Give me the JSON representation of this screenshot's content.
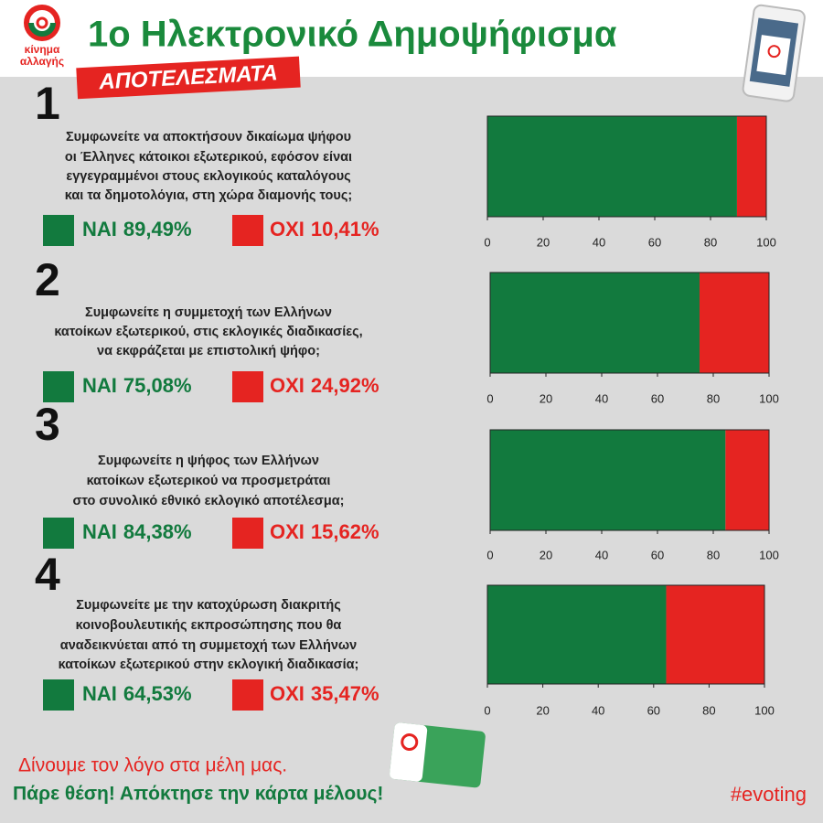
{
  "header": {
    "logo_text": [
      "κίνημα",
      "αλλαγής"
    ],
    "title": "1ο Ηλεκτρονικό Δημοψήφισμα",
    "badge": "ΑΠΟΤΕΛΕΣΜΑΤΑ"
  },
  "chart_data": [
    {
      "type": "bar",
      "orientation": "horizontal",
      "stacked": true,
      "number": "1",
      "question": [
        "Συμφωνείτε να αποκτήσουν δικαίωμα ψήφου",
        "οι Έλληνες κάτοικοι εξωτερικού, εφόσον είναι",
        "εγγεγραμμένοι στους εκλογικούς καταλόγους",
        "και τα δημοτολόγια, στη χώρα διαμονής τους;"
      ],
      "series": [
        {
          "name": "ΝΑΙ",
          "color": "#127a3e",
          "values": [
            89.49
          ],
          "value_labels": [
            "89,49%"
          ]
        },
        {
          "name": "ΟΧΙ",
          "color": "#e52421",
          "values": [
            10.41
          ],
          "value_labels": [
            "10,41%"
          ]
        }
      ],
      "xlim": [
        0,
        100
      ],
      "xticks": [
        0,
        20,
        40,
        60,
        80,
        100
      ]
    },
    {
      "type": "bar",
      "orientation": "horizontal",
      "stacked": true,
      "number": "2",
      "question": [
        "Συμφωνείτε η συμμετοχή των Ελλήνων",
        "κατοίκων εξωτερικού, στις εκλογικές διαδικασίες,",
        "να εκφράζεται με επιστολική ψήφο;"
      ],
      "series": [
        {
          "name": "ΝΑΙ",
          "color": "#127a3e",
          "values": [
            75.08
          ],
          "value_labels": [
            "75,08%"
          ]
        },
        {
          "name": "ΟΧΙ",
          "color": "#e52421",
          "values": [
            24.92
          ],
          "value_labels": [
            "24,92%"
          ]
        }
      ],
      "xlim": [
        0,
        100
      ],
      "xticks": [
        0,
        20,
        40,
        60,
        80,
        100
      ]
    },
    {
      "type": "bar",
      "orientation": "horizontal",
      "stacked": true,
      "number": "3",
      "question": [
        "Συμφωνείτε η ψήφος των Ελλήνων",
        "κατοίκων εξωτερικού να προσμετράται",
        "στο συνολικό εθνικό εκλογικό αποτέλεσμα;"
      ],
      "series": [
        {
          "name": "ΝΑΙ",
          "color": "#127a3e",
          "values": [
            84.38
          ],
          "value_labels": [
            "84,38%"
          ]
        },
        {
          "name": "ΟΧΙ",
          "color": "#e52421",
          "values": [
            15.62
          ],
          "value_labels": [
            "15,62%"
          ]
        }
      ],
      "xlim": [
        0,
        100
      ],
      "xticks": [
        0,
        20,
        40,
        60,
        80,
        100
      ]
    },
    {
      "type": "bar",
      "orientation": "horizontal",
      "stacked": true,
      "number": "4",
      "question": [
        "Συμφωνείτε με την κατοχύρωση διακριτής",
        "κοινοβουλευτικής εκπροσώπησης που θα",
        "αναδεικνύεται από τη συμμετοχή των Ελλήνων",
        "κατοίκων εξωτερικού στην εκλογική διαδικασία;"
      ],
      "series": [
        {
          "name": "ΝΑΙ",
          "color": "#127a3e",
          "values": [
            64.53
          ],
          "value_labels": [
            "64,53%"
          ]
        },
        {
          "name": "ΟΧΙ",
          "color": "#e52421",
          "values": [
            35.47
          ],
          "value_labels": [
            "35,47%"
          ]
        }
      ],
      "xlim": [
        0,
        100
      ],
      "xticks": [
        0,
        20,
        40,
        60,
        80,
        100
      ]
    }
  ],
  "footer": {
    "line1": "Δίνουμε τον λόγο στα μέλη μας.",
    "line2": "Πάρε θέση! Απόκτησε την κάρτα μέλους!",
    "hashtag": "#evoting"
  }
}
